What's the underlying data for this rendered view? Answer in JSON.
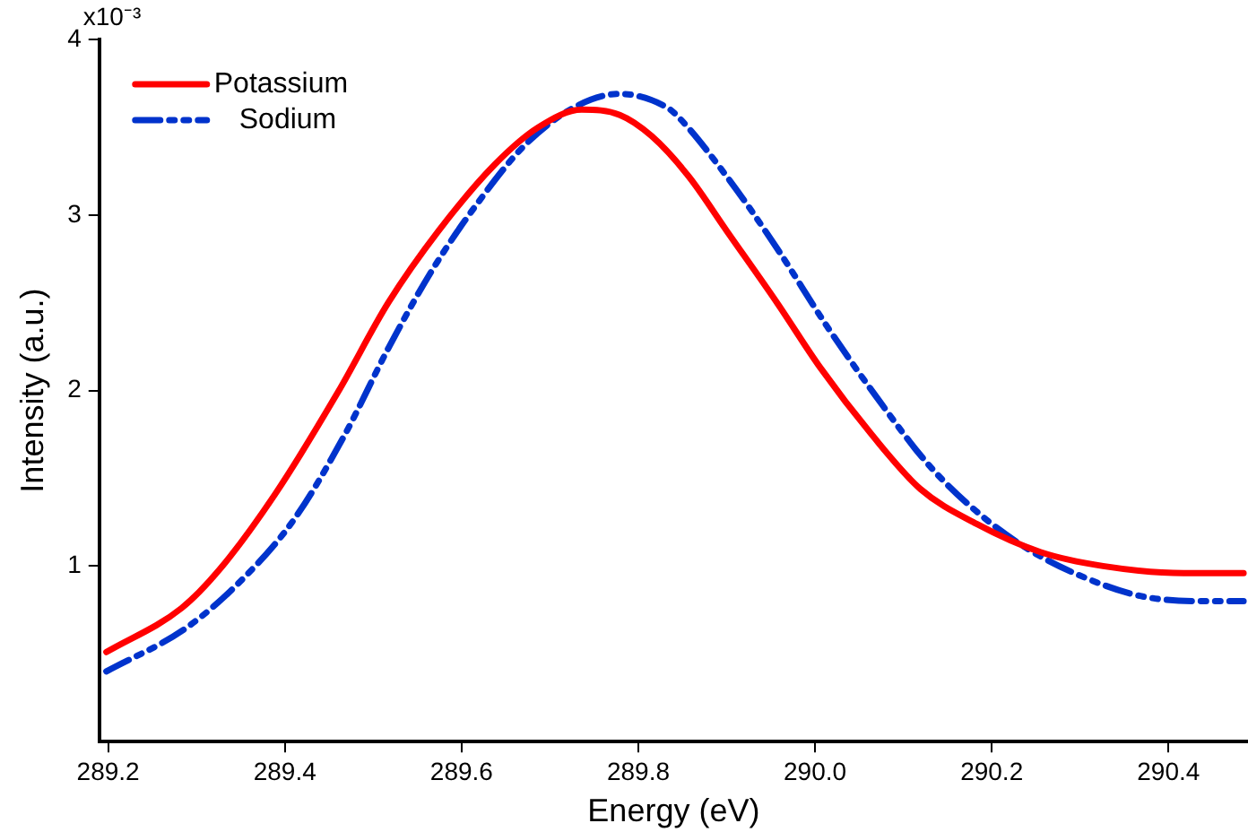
{
  "chart_data": {
    "type": "line",
    "xlabel": "Energy (eV)",
    "ylabel": "Intensity (a.u.)",
    "xlim": [
      289.19,
      290.49
    ],
    "xticks": [
      289.2,
      289.4,
      289.6,
      289.8,
      {
        "value": 290,
        "label": "290.0"
      },
      290.2,
      290.4
    ],
    "ylim": [
      0,
      4
    ],
    "yticks": [
      1,
      2,
      3,
      4
    ],
    "annotations": [
      "x10⁻³"
    ],
    "grid": false,
    "legend": "top left",
    "marker": "none",
    "series": [
      {
        "name": "Potassium",
        "color": "#ff0000",
        "line_style": "solid",
        "x": [
          289.198,
          289.283,
          289.326,
          289.389,
          289.46,
          289.517,
          289.574,
          289.638,
          289.687,
          289.736,
          289.779,
          289.815,
          289.857,
          289.9,
          289.957,
          290.006,
          290.064,
          290.119,
          290.183,
          290.255,
          290.326,
          290.417,
          290.485
        ],
        "values": [
          0.51,
          0.76,
          0.98,
          1.41,
          1.99,
          2.5,
          2.91,
          3.29,
          3.5,
          3.6,
          3.57,
          3.45,
          3.22,
          2.91,
          2.5,
          2.13,
          1.75,
          1.44,
          1.24,
          1.08,
          1.0,
          0.96,
          0.96
        ]
      },
      {
        "name": "Sodium",
        "color": "#0033cc",
        "line_style": "dashed",
        "x": [
          289.198,
          289.289,
          289.353,
          289.411,
          289.468,
          289.517,
          289.566,
          289.617,
          289.672,
          289.73,
          289.779,
          289.83,
          289.843,
          289.9,
          289.957,
          290.013,
          290.07,
          290.128,
          290.183,
          290.24,
          290.298,
          290.368,
          290.438,
          290.485
        ],
        "values": [
          0.4,
          0.65,
          0.93,
          1.27,
          1.75,
          2.24,
          2.68,
          3.06,
          3.4,
          3.62,
          3.69,
          3.62,
          3.57,
          3.22,
          2.81,
          2.37,
          1.96,
          1.58,
          1.31,
          1.1,
          0.95,
          0.83,
          0.8,
          0.8
        ]
      }
    ]
  }
}
